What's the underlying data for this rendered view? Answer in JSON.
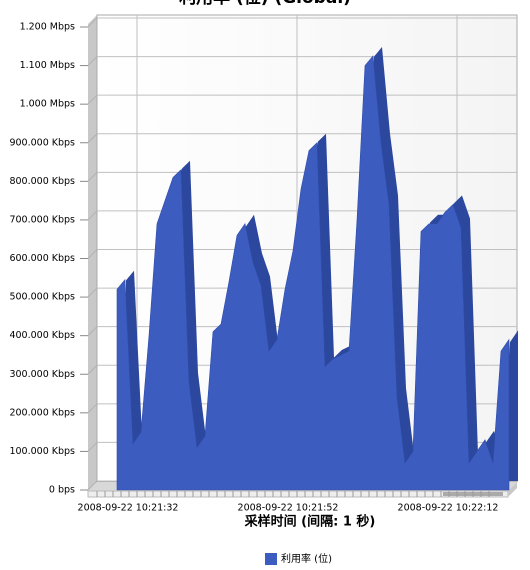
{
  "chart_data": {
    "type": "area",
    "title": "利用率 (位) (Global)",
    "x_label": "采样时间 (间隔: 1 秒)",
    "categories": [
      null,
      "2008-09-22 10:21:32",
      null,
      null,
      null,
      null,
      null,
      null,
      null,
      null,
      null,
      null,
      null,
      null,
      null,
      null,
      null,
      null,
      null,
      null,
      null,
      "2008-09-22 10:21:52",
      null,
      null,
      null,
      null,
      null,
      null,
      null,
      null,
      null,
      null,
      null,
      null,
      null,
      null,
      null,
      null,
      null,
      null,
      null,
      "2008-09-22 10:22:12",
      null,
      null,
      null,
      null,
      null,
      null,
      null,
      null
    ],
    "series": [
      {
        "name": "利用率 (位)",
        "color": "#3d5cc0",
        "values": [
          520,
          545,
          120,
          150,
          400,
          690,
          750,
          810,
          830,
          280,
          110,
          140,
          410,
          430,
          540,
          660,
          690,
          590,
          530,
          360,
          390,
          520,
          620,
          780,
          880,
          900,
          320,
          340,
          350,
          360,
          700,
          1100,
          1125,
          900,
          740,
          240,
          70,
          100,
          670,
          690,
          690,
          720,
          740,
          680,
          70,
          100,
          130,
          70,
          360,
          390
        ]
      }
    ],
    "ylim": [
      0,
      1200
    ],
    "yticks": [
      {
        "value": 0,
        "label": "0 bps"
      },
      {
        "value": 100,
        "label": "100.000 Kbps"
      },
      {
        "value": 200,
        "label": "200.000 Kbps"
      },
      {
        "value": 300,
        "label": "300.000 Kbps"
      },
      {
        "value": 400,
        "label": "400.000 Kbps"
      },
      {
        "value": 500,
        "label": "500.000 Kbps"
      },
      {
        "value": 600,
        "label": "600.000 Kbps"
      },
      {
        "value": 700,
        "label": "700.000 Kbps"
      },
      {
        "value": 800,
        "label": "800.000 Kbps"
      },
      {
        "value": 900,
        "label": "900.000 Kbps"
      },
      {
        "value": 1000,
        "label": "1.000 Mbps"
      },
      {
        "value": 1100,
        "label": "1.100 Mbps"
      },
      {
        "value": 1200,
        "label": "1.200 Mbps"
      }
    ],
    "grid": true
  }
}
